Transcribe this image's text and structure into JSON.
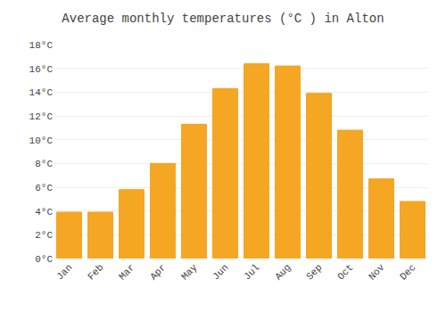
{
  "chart_data": {
    "type": "bar",
    "title": "Average monthly temperatures (°C ) in Alton",
    "categories": [
      "Jan",
      "Feb",
      "Mar",
      "Apr",
      "May",
      "Jun",
      "Jul",
      "Aug",
      "Sep",
      "Oct",
      "Nov",
      "Dec"
    ],
    "values": [
      3.9,
      3.9,
      5.8,
      8.0,
      11.3,
      14.3,
      16.4,
      16.2,
      13.9,
      10.8,
      6.7,
      4.8
    ],
    "color": "#F5A623",
    "ylim": [
      0,
      18
    ],
    "yticks": [
      {
        "value": 0,
        "label": "0°C"
      },
      {
        "value": 2,
        "label": "2°C"
      },
      {
        "value": 4,
        "label": "4°C"
      },
      {
        "value": 6,
        "label": "6°C"
      },
      {
        "value": 8,
        "label": "8°C"
      },
      {
        "value": 10,
        "label": "10°C"
      },
      {
        "value": 12,
        "label": "12°C"
      },
      {
        "value": 14,
        "label": "14°C"
      },
      {
        "value": 16,
        "label": "16°C"
      },
      {
        "value": 18,
        "label": "18°C"
      }
    ],
    "grid": true
  }
}
